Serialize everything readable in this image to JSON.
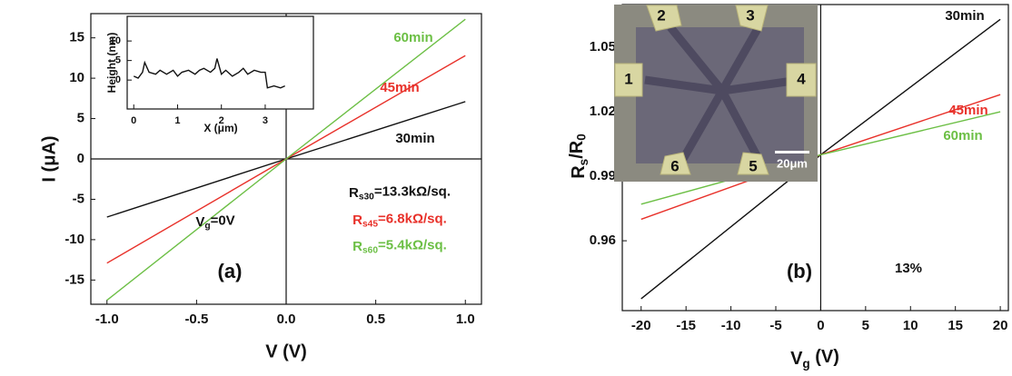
{
  "chart_data": [
    {
      "type": "line",
      "xlabel": "V (V)",
      "ylabel": "I (μA)",
      "panel_label": "(a)",
      "x": [
        -1.0,
        0.0,
        1.0
      ],
      "series": [
        {
          "name": "30min",
          "color": "#111111",
          "values": [
            -7.2,
            0,
            7.1
          ]
        },
        {
          "name": "45min",
          "color": "#e8312a",
          "values": [
            -12.9,
            0,
            12.8
          ]
        },
        {
          "name": "60min",
          "color": "#6cbf45",
          "values": [
            -17.5,
            0,
            17.3
          ]
        }
      ],
      "xlim": [
        -1.09,
        1.09
      ],
      "ylim": [
        -18,
        18
      ],
      "xticks": [
        {
          "value": -1.0,
          "label": "-1.0"
        },
        {
          "value": -0.5,
          "label": "-0.5"
        },
        {
          "value": 0.0,
          "label": "0.0"
        },
        {
          "value": 0.5,
          "label": "0.5"
        },
        {
          "value": 1.0,
          "label": "1.0"
        }
      ],
      "yticks": [
        -15,
        -10,
        -5,
        0,
        5,
        10,
        15
      ],
      "annotations": [
        [
          "V",
          "g",
          "=0V"
        ],
        [
          "R",
          "s30",
          "=13.3kΩ/sq."
        ],
        [
          "R",
          "s45",
          "=6.8kΩ/sq."
        ],
        [
          "R",
          "s60",
          "=5.4kΩ/sq."
        ]
      ],
      "annotation_colors": [
        "#111111",
        "#111111",
        "#e8312a",
        "#6cbf45"
      ]
    },
    {
      "type": "line",
      "xlabel": "X (μm)",
      "ylabel": "Height (nm)",
      "x": [
        0,
        0.1,
        0.2,
        0.25,
        0.35,
        0.5,
        0.6,
        0.75,
        0.9,
        1.0,
        1.1,
        1.25,
        1.4,
        1.5,
        1.6,
        1.75,
        1.85,
        1.9,
        2.0,
        2.1,
        2.25,
        2.4,
        2.5,
        2.6,
        2.75,
        2.9,
        3.0,
        3.05,
        3.2,
        3.35,
        3.45
      ],
      "series": [
        {
          "color": "#111111",
          "values": [
            1,
            0.5,
            2,
            4.5,
            2,
            1.5,
            2.5,
            1.5,
            2.5,
            1,
            2,
            2.5,
            1.5,
            2.5,
            3,
            2,
            3,
            5.5,
            1.5,
            2.5,
            1,
            2,
            3,
            1.5,
            2.5,
            2,
            2,
            -2,
            -1.5,
            -2,
            -1.5
          ]
        }
      ],
      "xlim": [
        -0.15,
        4.1
      ],
      "ylim": [
        -7.4,
        16.3
      ],
      "xticks": [
        0,
        1,
        2,
        3
      ],
      "yticks": [
        0,
        5,
        10
      ]
    },
    {
      "type": "line",
      "ylabel": [
        "R",
        "s",
        "/R",
        "0"
      ],
      "xlabel": [
        "V",
        "g",
        " (V)"
      ],
      "panel_label": "(b)",
      "x": [
        -20,
        0,
        20
      ],
      "series": [
        {
          "name": "30min",
          "color": "#111111",
          "values": [
            0.933,
            1.0,
            1.063
          ]
        },
        {
          "name": "45min",
          "color": "#e8312a",
          "values": [
            0.97,
            1.0,
            1.028
          ]
        },
        {
          "name": "60min",
          "color": "#6cbf45",
          "values": [
            0.977,
            1.0,
            1.02
          ]
        }
      ],
      "xlim": [
        -22.1,
        20.9
      ],
      "ylim": [
        0.9275,
        1.0699
      ],
      "xticks": [
        -20,
        -15,
        -10,
        -5,
        0,
        5,
        10,
        15,
        20
      ],
      "yticks": [
        0.96,
        0.99,
        1.02,
        1.05
      ],
      "annotations": [
        "13%"
      ],
      "annotation_colors": [
        "#111111"
      ]
    }
  ],
  "photo": {
    "pads": [
      "1",
      "2",
      "3",
      "4",
      "5",
      "6"
    ],
    "scale_bar": "20μm"
  }
}
